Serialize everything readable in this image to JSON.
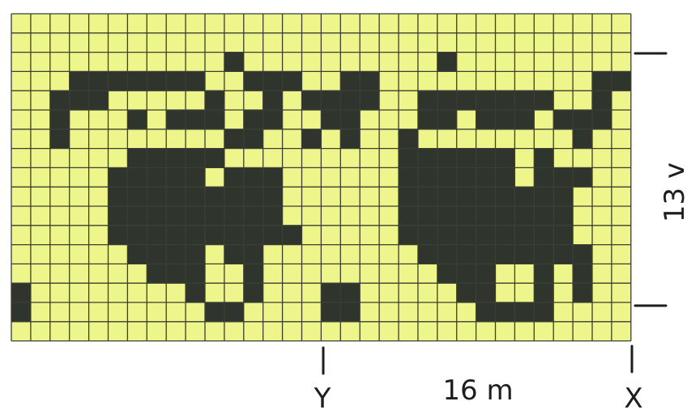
{
  "chart": {
    "cols": 32,
    "rows": 17,
    "colors": {
      "background": "#eef58a",
      "filled": "#2f352c",
      "grid": "#3a3f33"
    },
    "rows_data": [
      "................................",
      "................................",
      "...........#..........#.........",
      "...#######..###..##...........##",
      "..###.....#..#.####..#######..#.",
      "..#...#.###.##..##...##.###.###.",
      "..#........##..#.#..#........#..",
      "......#####.........######.#....",
      ".....#####.###......######.###..",
      ".....#########......#########...",
      ".....#########......#########...",
      ".....##########.....#########...",
      "......####.##........#########..",
      ".......###..#.........###..#.#..",
      "#........#..#...##.....##..#.#..",
      "#.........##....##......####....",
      "................................"
    ]
  },
  "annotations": {
    "height_label": "13 v",
    "width_label": "16 m",
    "marker_y": "Y",
    "marker_x": "X"
  }
}
